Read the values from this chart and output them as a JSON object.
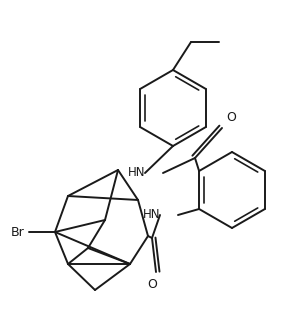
{
  "background": "#ffffff",
  "line_color": "#1a1a1a",
  "line_width": 1.4,
  "font_size": 8.5,
  "figsize": [
    3.08,
    3.1
  ],
  "dpi": 100,
  "xlim": [
    0,
    308
  ],
  "ylim": [
    0,
    310
  ]
}
